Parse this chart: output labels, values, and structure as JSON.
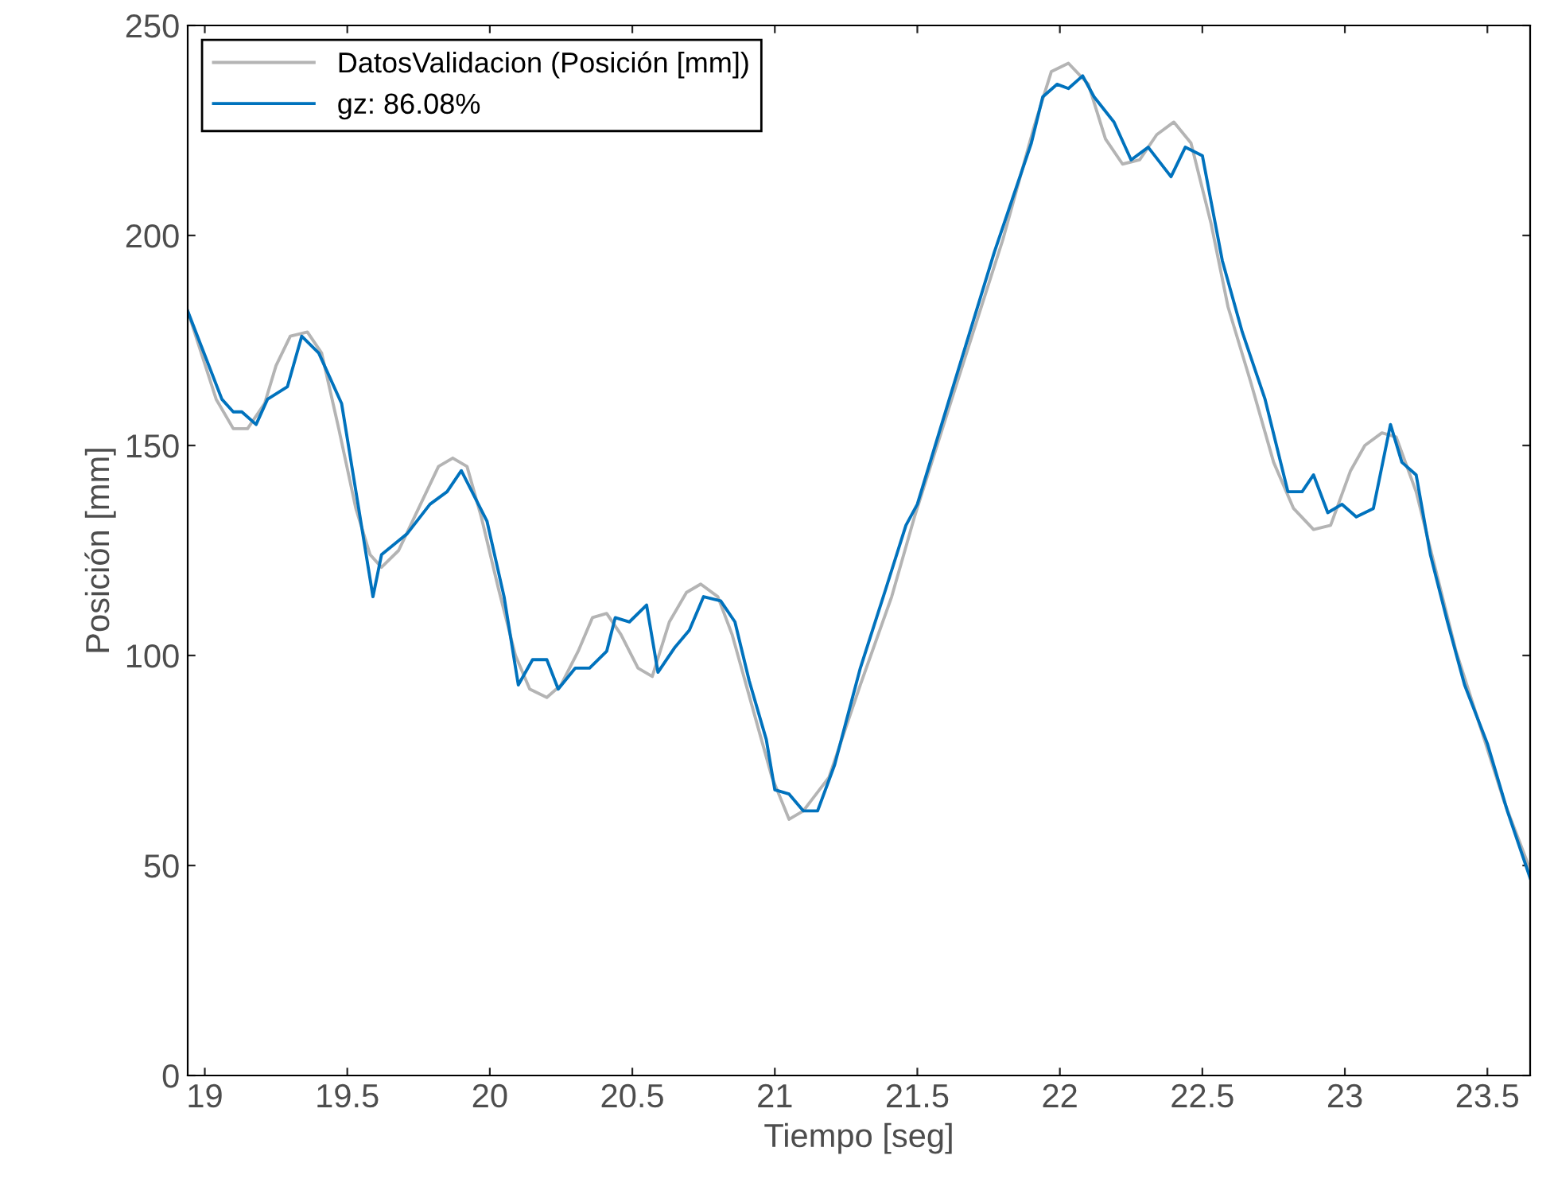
{
  "chart_data": {
    "type": "line",
    "xlabel": "Tiempo [seg]",
    "ylabel": "Posición [mm]",
    "xlim": [
      18.94,
      23.65
    ],
    "ylim": [
      0,
      250
    ],
    "xticks": [
      19,
      19.5,
      20,
      20.5,
      21,
      21.5,
      22,
      22.5,
      23,
      23.5
    ],
    "yticks": [
      0,
      50,
      100,
      150,
      200,
      250
    ],
    "grid": false,
    "legend": "top left",
    "marker": "none",
    "line_style": "solid",
    "series": [
      {
        "name": "DatosValidacion (Posición [mm])",
        "color": "#b4b4b4",
        "x": [
          18.94,
          19.04,
          19.1,
          19.15,
          19.21,
          19.25,
          19.3,
          19.36,
          19.41,
          19.47,
          19.53,
          19.58,
          19.62,
          19.68,
          19.75,
          19.82,
          19.87,
          19.92,
          19.97,
          20.03,
          20.09,
          20.14,
          20.2,
          20.25,
          20.31,
          20.36,
          20.41,
          20.46,
          20.52,
          20.57,
          20.63,
          20.69,
          20.74,
          20.8,
          20.85,
          20.92,
          20.99,
          21.05,
          21.1,
          21.19,
          21.3,
          21.41,
          21.49,
          21.63,
          21.8,
          21.91,
          21.97,
          22.03,
          22.1,
          22.16,
          22.22,
          22.28,
          22.34,
          22.4,
          22.46,
          22.53,
          22.59,
          22.67,
          22.75,
          22.82,
          22.89,
          22.95,
          23.02,
          23.07,
          23.13,
          23.18,
          23.25,
          23.32,
          23.39,
          23.48,
          23.56,
          23.65
        ],
        "values": [
          182,
          161,
          154,
          154,
          160,
          169,
          176,
          177,
          172,
          154,
          135,
          124,
          121,
          125,
          135,
          145,
          147,
          145,
          133,
          116,
          100,
          92,
          90,
          93,
          101,
          109,
          110,
          105,
          97,
          95,
          108,
          115,
          117,
          114,
          105,
          88,
          71,
          61,
          63,
          71,
          93,
          114,
          133,
          163,
          199,
          226,
          239,
          241,
          236,
          223,
          217,
          218,
          224,
          227,
          222,
          203,
          183,
          165,
          146,
          135,
          130,
          131,
          144,
          150,
          153,
          152,
          139,
          120,
          101,
          82,
          65,
          49
        ]
      },
      {
        "name": "gz: 86.08%",
        "color": "#0072bd",
        "x": [
          18.94,
          19.06,
          19.1,
          19.13,
          19.18,
          19.22,
          19.29,
          19.34,
          19.4,
          19.48,
          19.54,
          19.59,
          19.62,
          19.71,
          19.79,
          19.85,
          19.9,
          19.99,
          20.05,
          20.1,
          20.15,
          20.2,
          20.24,
          20.3,
          20.35,
          20.41,
          20.44,
          20.49,
          20.55,
          20.59,
          20.65,
          20.7,
          20.75,
          20.81,
          20.86,
          20.91,
          20.97,
          21.0,
          21.05,
          21.1,
          21.15,
          21.21,
          21.3,
          21.39,
          21.46,
          21.5,
          21.63,
          21.77,
          21.9,
          21.94,
          21.99,
          22.03,
          22.08,
          22.12,
          22.19,
          22.25,
          22.31,
          22.39,
          22.44,
          22.5,
          22.57,
          22.64,
          22.72,
          22.8,
          22.85,
          22.89,
          22.94,
          22.99,
          23.04,
          23.1,
          23.16,
          23.2,
          23.25,
          23.3,
          23.36,
          23.42,
          23.5,
          23.57,
          23.65
        ],
        "values": [
          182,
          161,
          158,
          158,
          155,
          161,
          164,
          176,
          172,
          160,
          135,
          114,
          124,
          129,
          136,
          139,
          144,
          132,
          114,
          93,
          99,
          99,
          92,
          97,
          97,
          101,
          109,
          108,
          112,
          96,
          102,
          106,
          114,
          113,
          108,
          94,
          80,
          68,
          67,
          63,
          63,
          74,
          97,
          116,
          131,
          136,
          165,
          196,
          222,
          233,
          236,
          235,
          238,
          233,
          227,
          218,
          221,
          214,
          221,
          219,
          194,
          177,
          161,
          139,
          139,
          143,
          134,
          136,
          133,
          135,
          155,
          146,
          143,
          124,
          108,
          93,
          79,
          63,
          47
        ]
      }
    ]
  }
}
